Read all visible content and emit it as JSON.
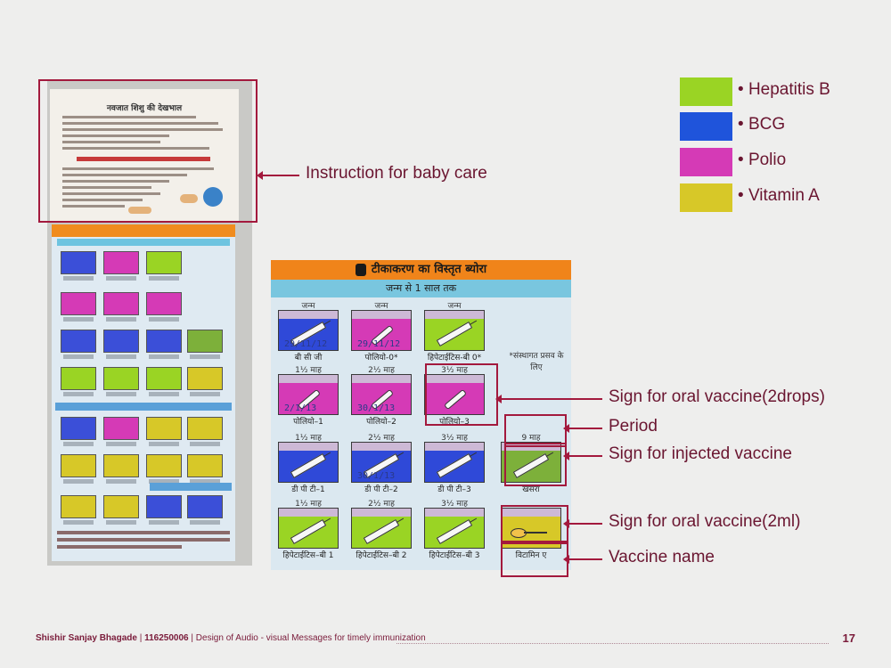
{
  "legend": [
    {
      "label": "Hepatitis B",
      "color": "#9ad424"
    },
    {
      "label": "BCG",
      "color": "#1f54db"
    },
    {
      "label": "Polio",
      "color": "#d53ab6"
    },
    {
      "label": "Vitamin A",
      "color": "#d7c828"
    }
  ],
  "callouts": {
    "baby_care": "Instruction for baby care",
    "oral_2drops": "Sign for oral vaccine(2drops)",
    "period": "Period",
    "injected": "Sign for injected vaccine",
    "oral_2ml": "Sign for oral vaccine(2ml)",
    "vaccine_name": "Vaccine name"
  },
  "booklet": {
    "care_title": "नवजात शिशु की देखभाल"
  },
  "chart": {
    "title": "टीकाकरण का विस्तृत ब्योरा",
    "subtitle": "जन्म से 1 साल तक",
    "note": "*संस्थागत प्रसव के लिए",
    "cells": [
      {
        "period": "जन्म",
        "name": "बी सी जी",
        "color": "#2f49d8",
        "sign": "syringe",
        "hw": "29/11/12"
      },
      {
        "period": "जन्म",
        "name": "पोलियो-0*",
        "color": "#d53ab6",
        "sign": "drop",
        "hw": "29/11/12"
      },
      {
        "period": "जन्म",
        "name": "हिपेटाईटिस-बी 0*",
        "color": "#9ad424",
        "sign": "syringe",
        "hw": ""
      },
      {
        "period": "1½ माह",
        "name": "पोलियो–1",
        "color": "#d53ab6",
        "sign": "drop",
        "hw": "2/1/13"
      },
      {
        "period": "2½ माह",
        "name": "पोलियो–2",
        "color": "#d53ab6",
        "sign": "drop",
        "hw": "30/1/13"
      },
      {
        "period": "3½ माह",
        "name": "पोलियो–3",
        "color": "#d53ab6",
        "sign": "drop",
        "hw": ""
      },
      {
        "period": "1½ माह",
        "name": "डी पी टी–1",
        "color": "#2f49d8",
        "sign": "syringe",
        "hw": ""
      },
      {
        "period": "2½ माह",
        "name": "डी पी टी–2",
        "color": "#2f49d8",
        "sign": "syringe",
        "hw": "30/1/13"
      },
      {
        "period": "3½ माह",
        "name": "डी पी टी–3",
        "color": "#2f49d8",
        "sign": "syringe",
        "hw": ""
      },
      {
        "period": "9 माह",
        "name": "खसरा",
        "color": "#7db03a",
        "sign": "syringe",
        "hw": ""
      },
      {
        "period": "1½ माह",
        "name": "हिपेटाईटिस–बी 1",
        "color": "#9ad424",
        "sign": "syringe",
        "hw": ""
      },
      {
        "period": "2½ माह",
        "name": "हिपेटाईटिस–बी 2",
        "color": "#9ad424",
        "sign": "syringe",
        "hw": ""
      },
      {
        "period": "3½ माह",
        "name": "हिपेटाईटिस–बी 3",
        "color": "#9ad424",
        "sign": "syringe",
        "hw": ""
      },
      {
        "period": "",
        "name": "विटामिन ए",
        "color": "#d7c828",
        "sign": "spoon",
        "hw": ""
      }
    ]
  },
  "footer": {
    "author": "Shishir Sanjay Bhagade",
    "roll": "116250006",
    "project": "Design of Audio - visual Messages for timely immunization",
    "page": "17"
  }
}
